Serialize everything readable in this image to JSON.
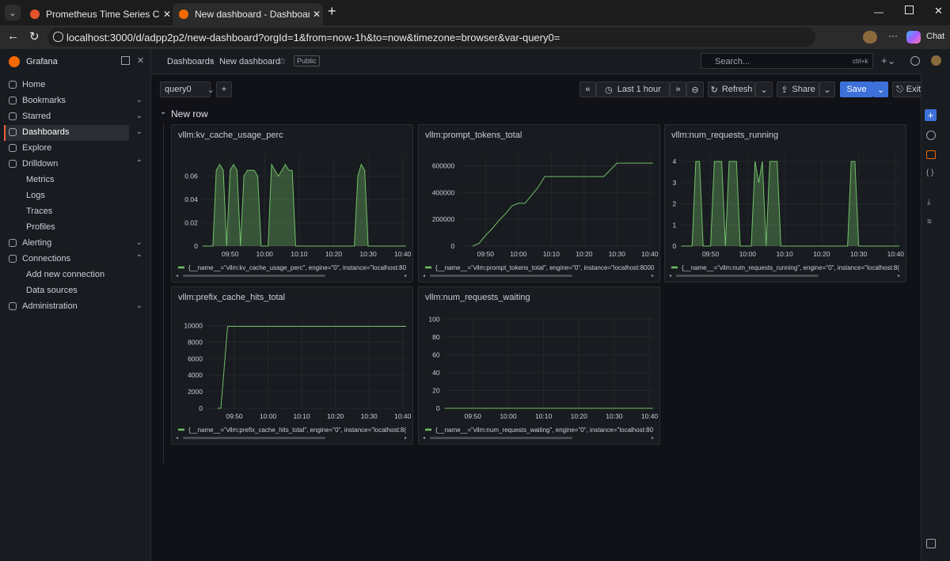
{
  "browser": {
    "tabs": [
      "Prometheus Time Series Collection",
      "New dashboard - Dashboards - Gr"
    ],
    "url": "localhost:3000/d/adpp2p2/new-dashboard?orgId=1&from=now-1h&to=now&timezone=browser&var-query0=",
    "chat": "Chat"
  },
  "sidebar": {
    "brand": "Grafana",
    "nav": [
      "Home",
      "Bookmarks",
      "Starred",
      "Dashboards",
      "Explore",
      "Drilldown",
      "Metrics",
      "Logs",
      "Traces",
      "Profiles",
      "Alerting",
      "Connections",
      "Add new connection",
      "Data sources",
      "Administration"
    ]
  },
  "header": {
    "breadcrumbs": [
      "Dashboards",
      "New dashboard"
    ],
    "badge": "Public",
    "search": "Search...",
    "shortcut": "ctrl+k"
  },
  "toolbar": {
    "variable": "query0",
    "time_range": "Last 1 hour",
    "refresh": "Refresh",
    "share": "Share",
    "save": "Save",
    "exit": "Exit edit"
  },
  "row": "New row",
  "panels": [
    {
      "type": "line",
      "title": "vllm:kv_cache_usage_perc",
      "fill": true,
      "x": [
        "09:42",
        "09:45",
        "09:46",
        "09:47",
        "09:48",
        "09:49",
        "09:50",
        "09:51",
        "09:52",
        "09:53",
        "09:54",
        "09:55",
        "09:56",
        "09:57",
        "09:58",
        "09:59",
        "10:01",
        "10:02",
        "10:03",
        "10:04",
        "10:05",
        "10:06",
        "10:07",
        "10:08",
        "10:09",
        "10:26",
        "10:27",
        "10:28",
        "10:29",
        "10:30",
        "10:41"
      ],
      "series": [
        {
          "name": "{__name__=\"vllm:kv_cache_usage_perc\", engine=\"0\", instance=\"localhost:80",
          "color": "#73bf69",
          "values": [
            0,
            0,
            0.065,
            0.07,
            0.065,
            0,
            0.065,
            0.07,
            0.065,
            0,
            0.06,
            0.065,
            0.065,
            0.065,
            0.06,
            0,
            0,
            0.07,
            0.065,
            0.06,
            0.065,
            0.07,
            0.065,
            0.065,
            0,
            0,
            0.06,
            0.07,
            0.065,
            0,
            0
          ]
        }
      ],
      "xlim": [
        "09:42",
        "10:41"
      ],
      "ylim": [
        0,
        0.078
      ],
      "xticks": [
        "09:50",
        "10:00",
        "10:10",
        "10:20",
        "10:30",
        "10:40"
      ],
      "yticks": [
        0,
        0.02,
        0.04,
        0.06
      ]
    },
    {
      "type": "line",
      "title": "vllm:prompt_tokens_total",
      "fill": false,
      "x": [
        "09:46",
        "09:48",
        "09:50",
        "09:52",
        "09:54",
        "09:56",
        "09:58",
        "10:00",
        "10:02",
        "10:04",
        "10:06",
        "10:08",
        "10:26",
        "10:28",
        "10:30",
        "10:41"
      ],
      "series": [
        {
          "name": "{__name__=\"vllm:prompt_tokens_total\", engine=\"0\", instance=\"localhost:8000",
          "color": "#73bf69",
          "values": [
            0,
            20000,
            80000,
            130000,
            190000,
            240000,
            300000,
            320000,
            320000,
            380000,
            440000,
            520000,
            520000,
            570000,
            620000,
            620000
          ]
        }
      ],
      "xlim": [
        "09:42",
        "10:41"
      ],
      "ylim": [
        0,
        680000
      ],
      "xticks": [
        "09:50",
        "10:00",
        "10:10",
        "10:20",
        "10:30",
        "10:40"
      ],
      "yticks": [
        0,
        200000,
        400000,
        600000
      ]
    },
    {
      "type": "line",
      "title": "vllm:num_requests_running",
      "fill": true,
      "x": [
        "09:42",
        "09:45",
        "09:46",
        "09:47",
        "09:48",
        "09:50",
        "09:51",
        "09:53",
        "09:54",
        "09:55",
        "09:57",
        "09:58",
        "10:01",
        "10:02",
        "10:03",
        "10:04",
        "10:05",
        "10:06",
        "10:08",
        "10:09",
        "10:27",
        "10:28",
        "10:29",
        "10:30",
        "10:41"
      ],
      "series": [
        {
          "name": "{__name__=\"vllm:num_requests_running\", engine=\"0\", instance=\"localhost:8(",
          "color": "#73bf69",
          "values": [
            0,
            0,
            4,
            4,
            0,
            0,
            4,
            4,
            0,
            4,
            4,
            0,
            0,
            4,
            3,
            4,
            0,
            4,
            4,
            0,
            0,
            4,
            4,
            0,
            0
          ]
        }
      ],
      "xlim": [
        "09:42",
        "10:41"
      ],
      "ylim": [
        0,
        4.3
      ],
      "xticks": [
        "09:50",
        "10:00",
        "10:10",
        "10:20",
        "10:30",
        "10:40"
      ],
      "yticks": [
        0,
        1,
        2,
        3,
        4
      ]
    },
    {
      "type": "line",
      "title": "vllm:prefix_cache_hits_total",
      "fill": false,
      "x": [
        "09:45",
        "09:46",
        "09:48",
        "10:41"
      ],
      "series": [
        {
          "name": "{__name__=\"vllm:prefix_cache_hits_total\", engine=\"0\", instance=\"localhost:8(",
          "color": "#73bf69",
          "values": [
            0,
            0,
            9900,
            9900
          ]
        }
      ],
      "xlim": [
        "09:42",
        "10:41"
      ],
      "ylim": [
        0,
        11000
      ],
      "xticks": [
        "09:50",
        "10:00",
        "10:10",
        "10:20",
        "10:30",
        "10:40"
      ],
      "yticks": [
        0,
        2000,
        4000,
        6000,
        8000,
        10000
      ]
    },
    {
      "type": "line",
      "title": "vllm:num_requests_waiting",
      "fill": false,
      "x": [
        "09:42",
        "10:41"
      ],
      "series": [
        {
          "name": "{__name__=\"vllm:num_requests_waiting\", engine=\"0\", instance=\"localhost:80",
          "color": "#73bf69",
          "values": [
            0,
            0
          ]
        }
      ],
      "xlim": [
        "09:42",
        "10:41"
      ],
      "ylim": [
        0,
        102
      ],
      "xticks": [
        "09:50",
        "10:00",
        "10:10",
        "10:20",
        "10:30",
        "10:40"
      ],
      "yticks": [
        0,
        20,
        40,
        60,
        80,
        100
      ]
    }
  ]
}
